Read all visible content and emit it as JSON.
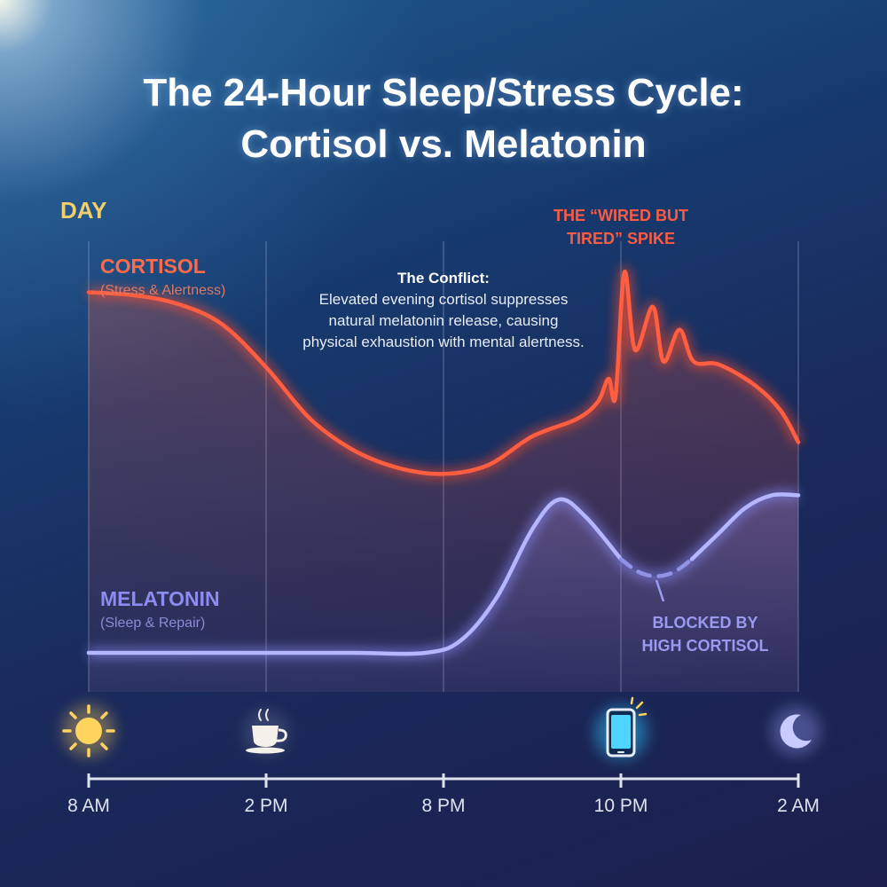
{
  "title_line1": "The 24-Hour Sleep/Stress Cycle:",
  "title_line2": "Cortisol vs. Melatonin",
  "day_label": "DAY",
  "annotation": {
    "spike_line1": "THE “WIRED BUT",
    "spike_line2": "TIRED” SPIKE",
    "conflict_title": "The Conflict:",
    "conflict_body": "Elevated evening cortisol suppresses natural melatonin release, causing physical exhaustion with mental alertness.",
    "blocked_line1": "BLOCKED BY",
    "blocked_line2": "HIGH CORTISOL"
  },
  "icons": [
    "sun-icon",
    "coffee-cup-icon",
    "phone-icon",
    "moon-icon"
  ],
  "colors": {
    "cortisol": "#ff5a3c",
    "melatonin": "#a7a9ff",
    "day": "#f2cf6a"
  },
  "chart_data": {
    "type": "line",
    "x_ticks": [
      "8 AM",
      "2 PM",
      "8 PM",
      "10 PM",
      "2 AM"
    ],
    "series": [
      {
        "name": "CORTISOL",
        "subtitle": "(Stress & Alertness)",
        "points": [
          [
            0,
            0.9
          ],
          [
            0.25,
            0.89
          ],
          [
            0.5,
            0.86
          ],
          [
            0.75,
            0.79
          ],
          [
            1.0,
            0.64
          ],
          [
            1.25,
            0.46
          ],
          [
            1.5,
            0.35
          ],
          [
            1.75,
            0.29
          ],
          [
            2.0,
            0.27
          ],
          [
            2.25,
            0.3
          ],
          [
            2.5,
            0.4
          ],
          [
            2.75,
            0.46
          ],
          [
            2.87,
            0.52
          ],
          [
            2.93,
            0.6
          ],
          [
            2.97,
            0.54
          ],
          [
            3.02,
            0.97
          ],
          [
            3.08,
            0.7
          ],
          [
            3.18,
            0.85
          ],
          [
            3.24,
            0.66
          ],
          [
            3.33,
            0.77
          ],
          [
            3.41,
            0.66
          ],
          [
            3.55,
            0.65
          ],
          [
            3.75,
            0.58
          ],
          [
            3.9,
            0.49
          ],
          [
            4.0,
            0.38
          ]
        ]
      },
      {
        "name": "MELATONIN",
        "subtitle": "(Sleep & Repair)",
        "points": [
          [
            0,
            0.0
          ],
          [
            0.5,
            0.0
          ],
          [
            1.0,
            0.0
          ],
          [
            1.5,
            0.0
          ],
          [
            1.9,
            0.0
          ],
          [
            2.1,
            0.03
          ],
          [
            2.3,
            0.13
          ],
          [
            2.5,
            0.29
          ],
          [
            2.65,
            0.36
          ],
          [
            2.8,
            0.32
          ],
          [
            3.0,
            0.22
          ],
          [
            3.1,
            0.19
          ],
          [
            3.2,
            0.18
          ],
          [
            3.3,
            0.19
          ],
          [
            3.4,
            0.22
          ],
          [
            3.55,
            0.28
          ],
          [
            3.7,
            0.34
          ],
          [
            3.85,
            0.37
          ],
          [
            4.0,
            0.37
          ]
        ],
        "blocked_range": [
          2.95,
          3.45
        ]
      }
    ]
  }
}
